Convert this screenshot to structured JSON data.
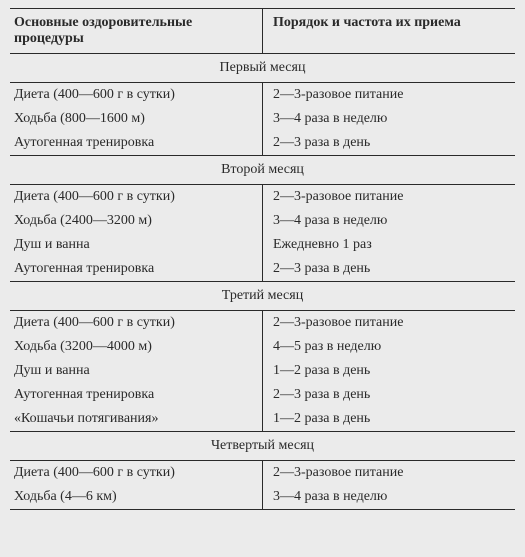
{
  "header": {
    "col1": "Основные оздоровительные процедуры",
    "col2": "Порядок и частота их приема"
  },
  "sections": [
    {
      "title": "Первый месяц",
      "rows": [
        {
          "c1": "Диета (400—600 г в сутки)",
          "c2": "2—3-разовое питание"
        },
        {
          "c1": "Ходьба (800—1600 м)",
          "c2": "3—4 раза в неделю"
        },
        {
          "c1": "Аутогенная тренировка",
          "c2": "2—3 раза в день"
        }
      ]
    },
    {
      "title": "Второй месяц",
      "rows": [
        {
          "c1": "Диета (400—600 г в сутки)",
          "c2": "2—3-разовое питание"
        },
        {
          "c1": "Ходьба (2400—3200 м)",
          "c2": "3—4 раза в неделю"
        },
        {
          "c1": "Душ и ванна",
          "c2": "Ежедневно 1 раз"
        },
        {
          "c1": "Аутогенная тренировка",
          "c2": "2—3 раза в день"
        }
      ]
    },
    {
      "title": "Третий месяц",
      "rows": [
        {
          "c1": "Диета (400—600 г в сутки)",
          "c2": "2—3-разовое питание"
        },
        {
          "c1": "Ходьба (3200—4000 м)",
          "c2": "4—5 раз в неделю"
        },
        {
          "c1": "Душ и ванна",
          "c2": "1—2 раза в день"
        },
        {
          "c1": "Аутогенная тренировка",
          "c2": "2—3 раза в день"
        },
        {
          "c1": "«Кошачьи потягивания»",
          "c2": "1—2 раза в день"
        }
      ]
    },
    {
      "title": "Четвертый месяц",
      "rows": [
        {
          "c1": "Диета (400—600 г в сутки)",
          "c2": "2—3-разовое питание"
        },
        {
          "c1": "Ходьба (4—6 км)",
          "c2": "3—4 раза в неделю"
        }
      ]
    }
  ],
  "style": {
    "background_color": "#ebebeb",
    "text_color": "#2a2a2a",
    "border_color": "#2a2a2a",
    "font_family": "Georgia, Times New Roman, serif",
    "font_size_body": 14,
    "font_size_header": 14,
    "header_border_width": 1.5,
    "row_border_width": 1,
    "col1_width_pct": 50,
    "col2_width_pct": 50
  }
}
